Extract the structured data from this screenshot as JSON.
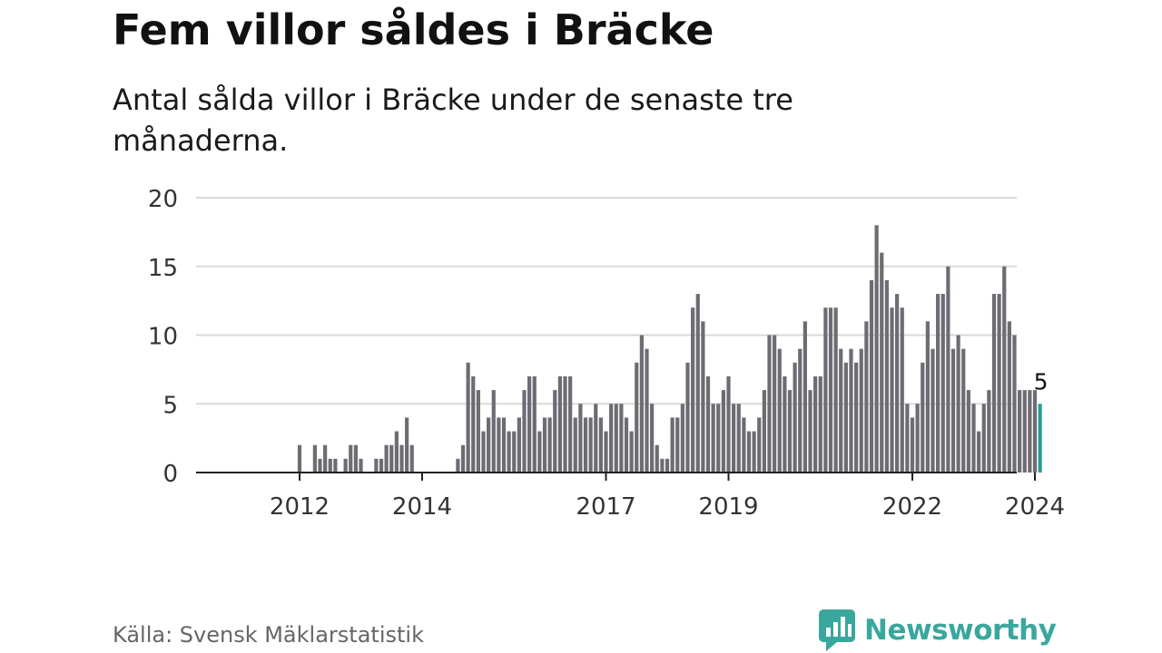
{
  "title": "Fem villor såldes i Bräcke",
  "subtitle": "Antal sålda villor i Bräcke under de senaste tre månaderna.",
  "source": "Källa: Svensk Mäklarstatistik",
  "brand": {
    "name": "Newsworthy",
    "icon": "newsworthy-logo-icon",
    "color": "#3aa79d"
  },
  "chart_data": {
    "type": "bar",
    "title": "",
    "xlabel": "",
    "ylabel": "",
    "ylim": [
      0,
      20
    ],
    "yticks": [
      0,
      5,
      10,
      15,
      20
    ],
    "grid": true,
    "xticks": [
      {
        "label": "2012",
        "month": "2012-01"
      },
      {
        "label": "2014",
        "month": "2014-01"
      },
      {
        "label": "2017",
        "month": "2017-01"
      },
      {
        "label": "2019",
        "month": "2019-01"
      },
      {
        "label": "2022",
        "month": "2022-01"
      },
      {
        "label": "2024",
        "month": "2024-01"
      }
    ],
    "bar_color": "#6e6c73",
    "highlight_color": "#2a9e97",
    "highlight_label": "5",
    "start_month": "2011-01",
    "series": [
      {
        "values": [
          null,
          null,
          null,
          null,
          null,
          null,
          null,
          null,
          null,
          null,
          null,
          null,
          2,
          null,
          null,
          2,
          1,
          2,
          1,
          1,
          null,
          1,
          2,
          2,
          1,
          null,
          null,
          1,
          1,
          2,
          2,
          3,
          2,
          4,
          2,
          null,
          null,
          null,
          null,
          null,
          null,
          null,
          null,
          1,
          2,
          8,
          7,
          6,
          3,
          4,
          6,
          4,
          4,
          3,
          3,
          4,
          6,
          7,
          7,
          3,
          4,
          4,
          6,
          7,
          7,
          7,
          4,
          5,
          4,
          4,
          5,
          4,
          3,
          5,
          5,
          5,
          4,
          3,
          8,
          10,
          9,
          5,
          2,
          1,
          1,
          4,
          4,
          5,
          8,
          12,
          13,
          11,
          7,
          5,
          5,
          6,
          7,
          5,
          5,
          4,
          3,
          3,
          4,
          6,
          10,
          10,
          9,
          7,
          6,
          8,
          9,
          11,
          6,
          7,
          7,
          12,
          12,
          12,
          9,
          8,
          9,
          8,
          9,
          11,
          14,
          18,
          16,
          14,
          12,
          13,
          12,
          5,
          4,
          5,
          8,
          11,
          9,
          13,
          13,
          15,
          9,
          10,
          9,
          6,
          5,
          3,
          5,
          6,
          13,
          13,
          15,
          11,
          10,
          6,
          6,
          6,
          6,
          5
        ]
      }
    ]
  }
}
